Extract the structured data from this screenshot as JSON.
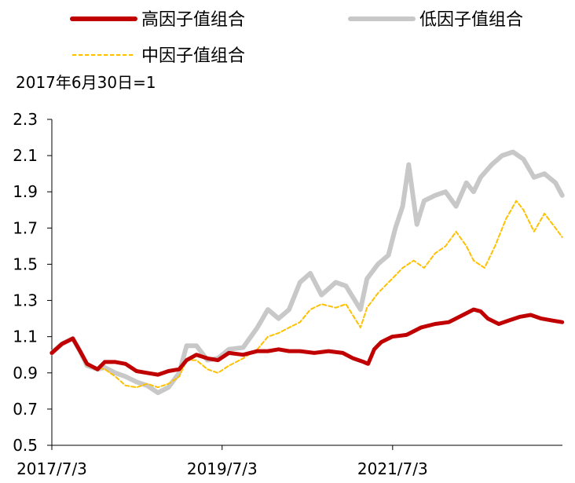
{
  "chart_data": {
    "type": "line",
    "note": "2017年6月30日=1",
    "x_ticks": [
      "2017/7/3",
      "2019/7/3",
      "2021/7/3"
    ],
    "x_range": [
      "2017-07-03",
      "2023-07-01"
    ],
    "ylim": [
      0.5,
      2.3
    ],
    "y_ticks": [
      "0.5",
      "0.7",
      "0.9",
      "1.1",
      "1.3",
      "1.5",
      "1.7",
      "1.9",
      "2.1",
      "2.3"
    ],
    "legend_placement": "top",
    "grid": false,
    "series": [
      {
        "name": "高因子值组合",
        "color": "#c00000",
        "style": "solid-thick",
        "points": [
          [
            "2017-07-03",
            1.01
          ],
          [
            "2017-08-15",
            1.06
          ],
          [
            "2017-10-01",
            1.09
          ],
          [
            "2017-11-01",
            1.02
          ],
          [
            "2017-12-01",
            0.95
          ],
          [
            "2018-01-15",
            0.92
          ],
          [
            "2018-02-15",
            0.96
          ],
          [
            "2018-04-01",
            0.96
          ],
          [
            "2018-05-15",
            0.95
          ],
          [
            "2018-07-01",
            0.91
          ],
          [
            "2018-08-15",
            0.9
          ],
          [
            "2018-10-01",
            0.89
          ],
          [
            "2018-11-15",
            0.91
          ],
          [
            "2018-12-31",
            0.92
          ],
          [
            "2019-02-01",
            0.97
          ],
          [
            "2019-03-15",
            1.0
          ],
          [
            "2019-05-01",
            0.98
          ],
          [
            "2019-06-15",
            0.97
          ],
          [
            "2019-08-01",
            1.01
          ],
          [
            "2019-10-01",
            1.0
          ],
          [
            "2019-12-01",
            1.02
          ],
          [
            "2020-01-15",
            1.02
          ],
          [
            "2020-03-01",
            1.03
          ],
          [
            "2020-04-15",
            1.02
          ],
          [
            "2020-06-01",
            1.02
          ],
          [
            "2020-08-01",
            1.01
          ],
          [
            "2020-10-01",
            1.02
          ],
          [
            "2020-12-01",
            1.01
          ],
          [
            "2021-01-15",
            0.98
          ],
          [
            "2021-03-01",
            0.96
          ],
          [
            "2021-03-20",
            0.95
          ],
          [
            "2021-04-15",
            1.03
          ],
          [
            "2021-05-15",
            1.07
          ],
          [
            "2021-07-01",
            1.1
          ],
          [
            "2021-09-01",
            1.11
          ],
          [
            "2021-11-01",
            1.15
          ],
          [
            "2022-01-01",
            1.17
          ],
          [
            "2022-03-01",
            1.18
          ],
          [
            "2022-05-01",
            1.22
          ],
          [
            "2022-06-15",
            1.25
          ],
          [
            "2022-07-15",
            1.24
          ],
          [
            "2022-08-15",
            1.2
          ],
          [
            "2022-10-01",
            1.17
          ],
          [
            "2022-11-15",
            1.19
          ],
          [
            "2023-01-01",
            1.21
          ],
          [
            "2023-02-15",
            1.22
          ],
          [
            "2023-04-01",
            1.2
          ],
          [
            "2023-05-15",
            1.19
          ],
          [
            "2023-06-30",
            1.18
          ]
        ]
      },
      {
        "name": "低因子值组合",
        "color": "#c8c8c8",
        "style": "solid-thick",
        "points": [
          [
            "2017-07-03",
            1.01
          ],
          [
            "2017-08-15",
            1.06
          ],
          [
            "2017-10-01",
            1.09
          ],
          [
            "2017-11-01",
            1.02
          ],
          [
            "2017-12-01",
            0.94
          ],
          [
            "2018-01-15",
            0.92
          ],
          [
            "2018-02-15",
            0.93
          ],
          [
            "2018-04-01",
            0.9
          ],
          [
            "2018-05-15",
            0.88
          ],
          [
            "2018-07-01",
            0.85
          ],
          [
            "2018-08-15",
            0.83
          ],
          [
            "2018-10-01",
            0.79
          ],
          [
            "2018-11-15",
            0.82
          ],
          [
            "2018-12-31",
            0.9
          ],
          [
            "2019-02-01",
            1.05
          ],
          [
            "2019-03-15",
            1.05
          ],
          [
            "2019-05-01",
            0.97
          ],
          [
            "2019-06-15",
            0.98
          ],
          [
            "2019-08-01",
            1.03
          ],
          [
            "2019-10-01",
            1.04
          ],
          [
            "2019-12-01",
            1.15
          ],
          [
            "2020-01-15",
            1.25
          ],
          [
            "2020-03-01",
            1.2
          ],
          [
            "2020-04-15",
            1.25
          ],
          [
            "2020-06-01",
            1.4
          ],
          [
            "2020-07-15",
            1.45
          ],
          [
            "2020-09-01",
            1.33
          ],
          [
            "2020-11-01",
            1.4
          ],
          [
            "2020-12-15",
            1.38
          ],
          [
            "2021-02-15",
            1.25
          ],
          [
            "2021-03-15",
            1.42
          ],
          [
            "2021-05-01",
            1.5
          ],
          [
            "2021-06-15",
            1.55
          ],
          [
            "2021-07-15",
            1.7
          ],
          [
            "2021-08-15",
            1.82
          ],
          [
            "2021-09-10",
            2.05
          ],
          [
            "2021-10-15",
            1.72
          ],
          [
            "2021-11-15",
            1.85
          ],
          [
            "2022-01-01",
            1.88
          ],
          [
            "2022-02-15",
            1.9
          ],
          [
            "2022-04-01",
            1.82
          ],
          [
            "2022-05-15",
            1.95
          ],
          [
            "2022-06-15",
            1.9
          ],
          [
            "2022-07-15",
            1.98
          ],
          [
            "2022-09-01",
            2.05
          ],
          [
            "2022-10-15",
            2.1
          ],
          [
            "2022-12-01",
            2.12
          ],
          [
            "2023-01-15",
            2.08
          ],
          [
            "2023-03-01",
            1.98
          ],
          [
            "2023-04-15",
            2.0
          ],
          [
            "2023-06-01",
            1.95
          ],
          [
            "2023-06-30",
            1.88
          ]
        ]
      },
      {
        "name": "中因子值组合",
        "color": "#ffc000",
        "style": "dashed",
        "points": [
          [
            "2017-07-03",
            1.01
          ],
          [
            "2017-08-15",
            1.06
          ],
          [
            "2017-10-01",
            1.09
          ],
          [
            "2017-11-01",
            1.02
          ],
          [
            "2017-12-01",
            0.94
          ],
          [
            "2018-01-15",
            0.93
          ],
          [
            "2018-02-15",
            0.92
          ],
          [
            "2018-04-01",
            0.88
          ],
          [
            "2018-05-15",
            0.83
          ],
          [
            "2018-07-01",
            0.82
          ],
          [
            "2018-08-15",
            0.84
          ],
          [
            "2018-10-01",
            0.82
          ],
          [
            "2018-11-15",
            0.84
          ],
          [
            "2018-12-31",
            0.88
          ],
          [
            "2019-02-01",
            0.97
          ],
          [
            "2019-03-15",
            0.97
          ],
          [
            "2019-05-01",
            0.92
          ],
          [
            "2019-06-15",
            0.9
          ],
          [
            "2019-08-01",
            0.94
          ],
          [
            "2019-10-01",
            0.98
          ],
          [
            "2019-12-01",
            1.03
          ],
          [
            "2020-01-15",
            1.1
          ],
          [
            "2020-03-01",
            1.12
          ],
          [
            "2020-04-15",
            1.15
          ],
          [
            "2020-06-01",
            1.18
          ],
          [
            "2020-07-15",
            1.25
          ],
          [
            "2020-09-01",
            1.28
          ],
          [
            "2020-11-01",
            1.26
          ],
          [
            "2020-12-15",
            1.28
          ],
          [
            "2021-02-15",
            1.15
          ],
          [
            "2021-03-15",
            1.26
          ],
          [
            "2021-05-01",
            1.34
          ],
          [
            "2021-07-01",
            1.42
          ],
          [
            "2021-08-15",
            1.48
          ],
          [
            "2021-10-01",
            1.52
          ],
          [
            "2021-11-15",
            1.48
          ],
          [
            "2022-01-01",
            1.56
          ],
          [
            "2022-02-15",
            1.6
          ],
          [
            "2022-04-01",
            1.68
          ],
          [
            "2022-05-15",
            1.6
          ],
          [
            "2022-06-15",
            1.52
          ],
          [
            "2022-08-01",
            1.48
          ],
          [
            "2022-09-15",
            1.6
          ],
          [
            "2022-11-01",
            1.75
          ],
          [
            "2022-12-15",
            1.85
          ],
          [
            "2023-01-15",
            1.8
          ],
          [
            "2023-03-01",
            1.68
          ],
          [
            "2023-04-15",
            1.78
          ],
          [
            "2023-06-01",
            1.7
          ],
          [
            "2023-06-30",
            1.65
          ]
        ]
      }
    ]
  }
}
